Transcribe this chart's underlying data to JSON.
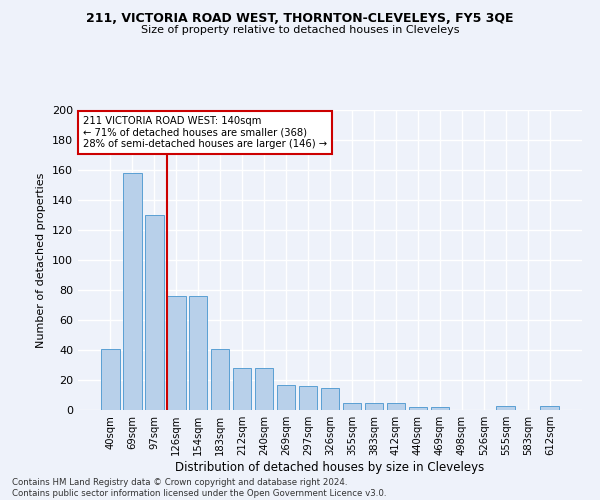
{
  "title1": "211, VICTORIA ROAD WEST, THORNTON-CLEVELEYS, FY5 3QE",
  "title2": "Size of property relative to detached houses in Cleveleys",
  "xlabel": "Distribution of detached houses by size in Cleveleys",
  "ylabel": "Number of detached properties",
  "bar_color": "#b8d0ea",
  "bar_edge_color": "#5a9fd4",
  "categories": [
    "40sqm",
    "69sqm",
    "97sqm",
    "126sqm",
    "154sqm",
    "183sqm",
    "212sqm",
    "240sqm",
    "269sqm",
    "297sqm",
    "326sqm",
    "355sqm",
    "383sqm",
    "412sqm",
    "440sqm",
    "469sqm",
    "498sqm",
    "526sqm",
    "555sqm",
    "583sqm",
    "612sqm"
  ],
  "values": [
    41,
    158,
    130,
    76,
    76,
    41,
    28,
    28,
    17,
    16,
    15,
    5,
    5,
    5,
    2,
    2,
    0,
    0,
    3,
    0,
    3
  ],
  "vline_x_idx": 3,
  "vline_color": "#cc0000",
  "annotation_line1": "211 VICTORIA ROAD WEST: 140sqm",
  "annotation_line2": "← 71% of detached houses are smaller (368)",
  "annotation_line3": "28% of semi-detached houses are larger (146) →",
  "annotation_box_color": "#ffffff",
  "annotation_box_edge": "#cc0000",
  "ylim": [
    0,
    200
  ],
  "yticks": [
    0,
    20,
    40,
    60,
    80,
    100,
    120,
    140,
    160,
    180,
    200
  ],
  "footer1": "Contains HM Land Registry data © Crown copyright and database right 2024.",
  "footer2": "Contains public sector information licensed under the Open Government Licence v3.0.",
  "bg_color": "#eef2fa",
  "grid_color": "#ffffff"
}
